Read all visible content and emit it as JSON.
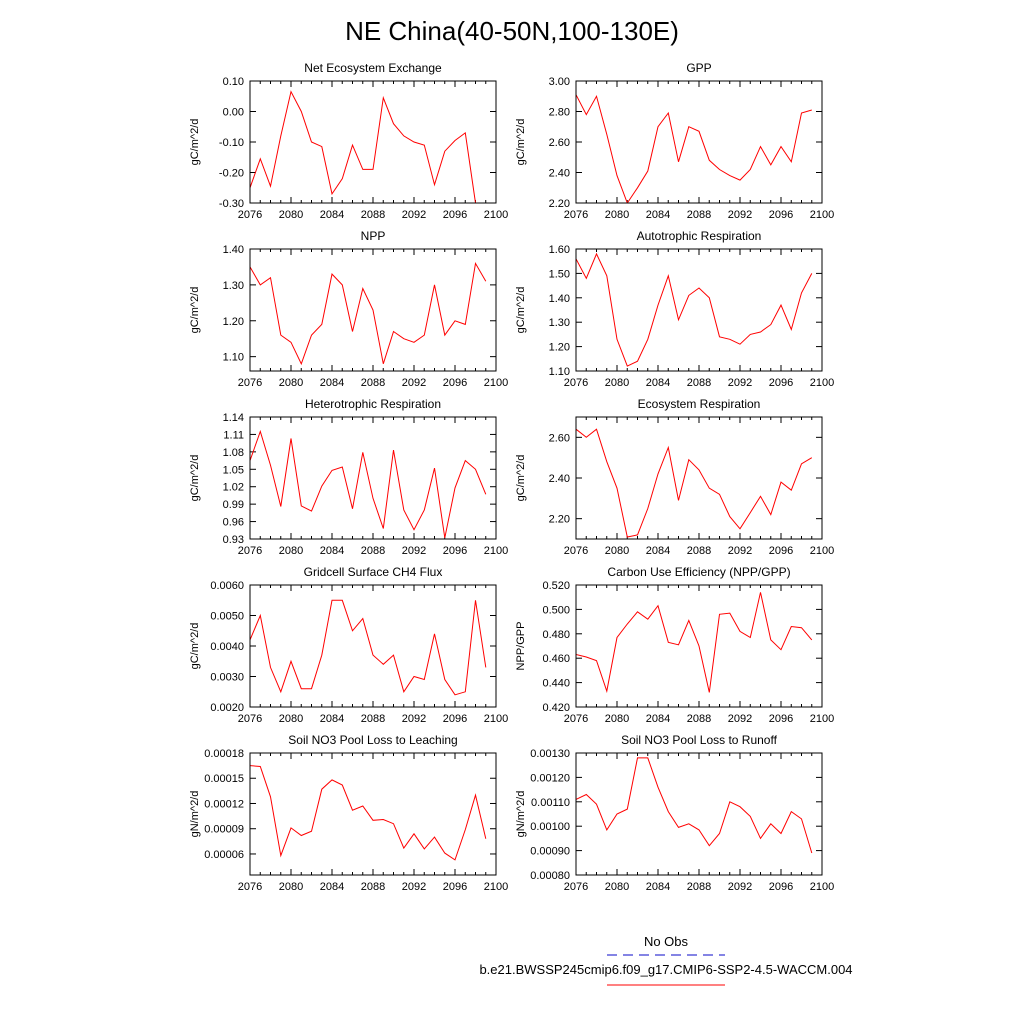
{
  "title": "NE China(40-50N,100-130E)",
  "x_ticks": [
    "2076",
    "2080",
    "2084",
    "2088",
    "2092",
    "2096",
    "2100"
  ],
  "line_color": "#ff0000",
  "legend": {
    "obs_label": "No Obs",
    "obs_color": "#3b3bd4",
    "model_label": "b.e21.BWSSP245cmip6.f09_g17.CMIP6-SSP2-4.5-WACCM.004",
    "model_color": "#ff0000"
  },
  "chart_data": [
    {
      "type": "line",
      "title": "Net Ecosystem Exchange",
      "ylabel": "gC/m^2/d",
      "xlim": [
        2076,
        2100
      ],
      "ylim": [
        -0.3,
        0.1
      ],
      "yticks": [
        -0.3,
        -0.2,
        -0.1,
        0.0,
        0.1
      ],
      "ytick_labels": [
        "-0.30",
        "-0.20",
        "-0.10",
        "0.00",
        "0.10"
      ],
      "x": [
        2076,
        2077,
        2078,
        2079,
        2080,
        2081,
        2082,
        2083,
        2084,
        2085,
        2086,
        2087,
        2088,
        2089,
        2090,
        2091,
        2092,
        2093,
        2094,
        2095,
        2096,
        2097,
        2098,
        2099
      ],
      "values": [
        -0.25,
        -0.155,
        -0.245,
        -0.08,
        0.065,
        0.0,
        -0.1,
        -0.115,
        -0.27,
        -0.22,
        -0.11,
        -0.19,
        -0.19,
        0.045,
        -0.04,
        -0.08,
        -0.1,
        -0.11,
        -0.24,
        -0.13,
        -0.095,
        -0.07,
        -0.3,
        -0.3
      ]
    },
    {
      "type": "line",
      "title": "GPP",
      "ylabel": "gC/m^2/d",
      "xlim": [
        2076,
        2100
      ],
      "ylim": [
        2.2,
        3.0
      ],
      "yticks": [
        2.2,
        2.4,
        2.6,
        2.8,
        3.0
      ],
      "ytick_labels": [
        "2.20",
        "2.40",
        "2.60",
        "2.80",
        "3.00"
      ],
      "x": [
        2076,
        2077,
        2078,
        2079,
        2080,
        2081,
        2082,
        2083,
        2084,
        2085,
        2086,
        2087,
        2088,
        2089,
        2090,
        2091,
        2092,
        2093,
        2094,
        2095,
        2096,
        2097,
        2098,
        2099
      ],
      "values": [
        2.91,
        2.78,
        2.9,
        2.65,
        2.38,
        2.2,
        2.3,
        2.41,
        2.7,
        2.79,
        2.47,
        2.7,
        2.67,
        2.48,
        2.42,
        2.38,
        2.35,
        2.42,
        2.57,
        2.45,
        2.57,
        2.47,
        2.79,
        2.81
      ]
    },
    {
      "type": "line",
      "title": "NPP",
      "ylabel": "gC/m^2/d",
      "xlim": [
        2076,
        2100
      ],
      "ylim": [
        1.06,
        1.4
      ],
      "yticks": [
        1.1,
        1.2,
        1.3,
        1.4
      ],
      "ytick_labels": [
        "1.10",
        "1.20",
        "1.30",
        "1.40"
      ],
      "x": [
        2076,
        2077,
        2078,
        2079,
        2080,
        2081,
        2082,
        2083,
        2084,
        2085,
        2086,
        2087,
        2088,
        2089,
        2090,
        2091,
        2092,
        2093,
        2094,
        2095,
        2096,
        2097,
        2098,
        2099
      ],
      "values": [
        1.35,
        1.3,
        1.32,
        1.16,
        1.14,
        1.08,
        1.16,
        1.19,
        1.33,
        1.3,
        1.17,
        1.29,
        1.23,
        1.08,
        1.17,
        1.15,
        1.14,
        1.16,
        1.3,
        1.16,
        1.2,
        1.19,
        1.36,
        1.31
      ]
    },
    {
      "type": "line",
      "title": "Autotrophic Respiration",
      "ylabel": "gC/m^2/d",
      "xlim": [
        2076,
        2100
      ],
      "ylim": [
        1.1,
        1.6
      ],
      "yticks": [
        1.1,
        1.2,
        1.3,
        1.4,
        1.5,
        1.6
      ],
      "ytick_labels": [
        "1.10",
        "1.20",
        "1.30",
        "1.40",
        "1.50",
        "1.60"
      ],
      "x": [
        2076,
        2077,
        2078,
        2079,
        2080,
        2081,
        2082,
        2083,
        2084,
        2085,
        2086,
        2087,
        2088,
        2089,
        2090,
        2091,
        2092,
        2093,
        2094,
        2095,
        2096,
        2097,
        2098,
        2099
      ],
      "values": [
        1.56,
        1.48,
        1.58,
        1.49,
        1.23,
        1.12,
        1.14,
        1.23,
        1.37,
        1.49,
        1.31,
        1.41,
        1.44,
        1.4,
        1.24,
        1.23,
        1.21,
        1.25,
        1.26,
        1.29,
        1.37,
        1.27,
        1.42,
        1.5
      ]
    },
    {
      "type": "line",
      "title": "Heterotrophic Respiration",
      "ylabel": "gC/m^2/d",
      "xlim": [
        2076,
        2100
      ],
      "ylim": [
        0.93,
        1.14
      ],
      "yticks": [
        0.93,
        0.96,
        0.99,
        1.02,
        1.05,
        1.08,
        1.11,
        1.14
      ],
      "ytick_labels": [
        "0.93",
        "0.96",
        "0.99",
        "1.02",
        "1.05",
        "1.08",
        "1.11",
        "1.14"
      ],
      "x": [
        2076,
        2077,
        2078,
        2079,
        2080,
        2081,
        2082,
        2083,
        2084,
        2085,
        2086,
        2087,
        2088,
        2089,
        2090,
        2091,
        2092,
        2093,
        2094,
        2095,
        2096,
        2097,
        2098,
        2099
      ],
      "values": [
        1.065,
        1.115,
        1.057,
        0.986,
        1.103,
        0.987,
        0.978,
        1.021,
        1.048,
        1.054,
        0.982,
        1.079,
        1.0,
        0.948,
        1.083,
        0.98,
        0.946,
        0.98,
        1.052,
        0.932,
        1.018,
        1.065,
        1.05,
        1.007
      ]
    },
    {
      "type": "line",
      "title": "Ecosystem Respiration",
      "ylabel": "gC/m^2/d",
      "xlim": [
        2076,
        2100
      ],
      "ylim": [
        2.1,
        2.7
      ],
      "yticks": [
        2.2,
        2.4,
        2.6
      ],
      "ytick_labels": [
        "2.20",
        "2.40",
        "2.60"
      ],
      "x": [
        2076,
        2077,
        2078,
        2079,
        2080,
        2081,
        2082,
        2083,
        2084,
        2085,
        2086,
        2087,
        2088,
        2089,
        2090,
        2091,
        2092,
        2093,
        2094,
        2095,
        2096,
        2097,
        2098,
        2099
      ],
      "values": [
        2.64,
        2.6,
        2.64,
        2.48,
        2.35,
        2.11,
        2.12,
        2.25,
        2.42,
        2.55,
        2.29,
        2.49,
        2.44,
        2.35,
        2.32,
        2.21,
        2.15,
        2.23,
        2.31,
        2.22,
        2.38,
        2.34,
        2.47,
        2.5
      ]
    },
    {
      "type": "line",
      "title": "Gridcell Surface CH4 Flux",
      "ylabel": "gC/m^2/d",
      "xlim": [
        2076,
        2100
      ],
      "ylim": [
        0.002,
        0.006
      ],
      "yticks": [
        0.002,
        0.003,
        0.004,
        0.005,
        0.006
      ],
      "ytick_labels": [
        "0.0020",
        "0.0030",
        "0.0040",
        "0.0050",
        "0.0060"
      ],
      "x": [
        2076,
        2077,
        2078,
        2079,
        2080,
        2081,
        2082,
        2083,
        2084,
        2085,
        2086,
        2087,
        2088,
        2089,
        2090,
        2091,
        2092,
        2093,
        2094,
        2095,
        2096,
        2097,
        2098,
        2099
      ],
      "values": [
        0.0042,
        0.005,
        0.0033,
        0.0025,
        0.0035,
        0.0026,
        0.0026,
        0.0037,
        0.0055,
        0.0055,
        0.0045,
        0.0049,
        0.0037,
        0.0034,
        0.0037,
        0.0025,
        0.003,
        0.0029,
        0.0044,
        0.0029,
        0.0024,
        0.0025,
        0.0055,
        0.0033
      ]
    },
    {
      "type": "line",
      "title": "Carbon Use Efficiency (NPP/GPP)",
      "ylabel": "NPP/GPP",
      "xlim": [
        2076,
        2100
      ],
      "ylim": [
        0.42,
        0.52
      ],
      "yticks": [
        0.42,
        0.44,
        0.46,
        0.48,
        0.5,
        0.52
      ],
      "ytick_labels": [
        "0.420",
        "0.440",
        "0.460",
        "0.480",
        "0.500",
        "0.520"
      ],
      "x": [
        2076,
        2077,
        2078,
        2079,
        2080,
        2081,
        2082,
        2083,
        2084,
        2085,
        2086,
        2087,
        2088,
        2089,
        2090,
        2091,
        2092,
        2093,
        2094,
        2095,
        2096,
        2097,
        2098,
        2099
      ],
      "values": [
        0.463,
        0.461,
        0.458,
        0.433,
        0.477,
        0.488,
        0.498,
        0.492,
        0.503,
        0.473,
        0.471,
        0.491,
        0.47,
        0.432,
        0.496,
        0.497,
        0.482,
        0.477,
        0.514,
        0.475,
        0.467,
        0.486,
        0.485,
        0.475
      ]
    },
    {
      "type": "line",
      "title": "Soil NO3 Pool Loss to Leaching",
      "ylabel": "gN/m^2/d",
      "xlim": [
        2076,
        2100
      ],
      "ylim": [
        3.5e-05,
        0.00018
      ],
      "yticks": [
        6e-05,
        9e-05,
        0.00012,
        0.00015,
        0.00018
      ],
      "ytick_labels": [
        "0.00006",
        "0.00009",
        "0.00012",
        "0.00015",
        "0.00018"
      ],
      "x": [
        2076,
        2077,
        2078,
        2079,
        2080,
        2081,
        2082,
        2083,
        2084,
        2085,
        2086,
        2087,
        2088,
        2089,
        2090,
        2091,
        2092,
        2093,
        2094,
        2095,
        2096,
        2097,
        2098,
        2099
      ],
      "values": [
        0.000165,
        0.000164,
        0.000128,
        5.8e-05,
        9.1e-05,
        8.2e-05,
        8.7e-05,
        0.000137,
        0.000148,
        0.000142,
        0.000112,
        0.000117,
        0.0001,
        0.000101,
        9.6e-05,
        6.7e-05,
        8.4e-05,
        6.6e-05,
        8e-05,
        6.1e-05,
        5.3e-05,
        8.9e-05,
        0.00013,
        7.8e-05
      ]
    },
    {
      "type": "line",
      "title": "Soil NO3 Pool Loss to Runoff",
      "ylabel": "gN/m^2/d",
      "xlim": [
        2076,
        2100
      ],
      "ylim": [
        0.0008,
        0.0013
      ],
      "yticks": [
        0.0008,
        0.0009,
        0.001,
        0.0011,
        0.0012,
        0.0013
      ],
      "ytick_labels": [
        "0.00080",
        "0.00090",
        "0.00100",
        "0.00110",
        "0.00120",
        "0.00130"
      ],
      "x": [
        2076,
        2077,
        2078,
        2079,
        2080,
        2081,
        2082,
        2083,
        2084,
        2085,
        2086,
        2087,
        2088,
        2089,
        2090,
        2091,
        2092,
        2093,
        2094,
        2095,
        2096,
        2097,
        2098,
        2099
      ],
      "values": [
        0.00111,
        0.00113,
        0.00109,
        0.000985,
        0.00105,
        0.00107,
        0.00128,
        0.00128,
        0.00116,
        0.00106,
        0.000995,
        0.00101,
        0.000985,
        0.00092,
        0.00097,
        0.0011,
        0.00108,
        0.00104,
        0.00095,
        0.00101,
        0.00097,
        0.00106,
        0.00103,
        0.00089
      ]
    }
  ]
}
